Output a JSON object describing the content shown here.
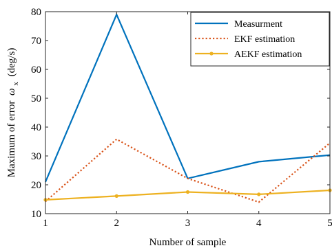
{
  "chart_data": {
    "type": "line",
    "title": "",
    "xlabel": "Number of sample",
    "ylabel": "Maximum of error",
    "ylabel_symbol": "ω",
    "ylabel_subscript": "x",
    "ylabel_unit": "(deg/s)",
    "x": [
      1,
      2,
      3,
      4,
      5
    ],
    "xlim": [
      1,
      5
    ],
    "ylim": [
      10,
      80
    ],
    "xticks": [
      "1",
      "2",
      "3",
      "4",
      "5"
    ],
    "yticks": [
      "10",
      "20",
      "30",
      "40",
      "50",
      "60",
      "70",
      "80"
    ],
    "grid": false,
    "legend_position": "top-right",
    "series": [
      {
        "name": "Measurment",
        "values": [
          21,
          79,
          22.2,
          28,
          30.3
        ],
        "color": "#0072BD",
        "style": "solid",
        "marker": "none"
      },
      {
        "name": "EKF estimation",
        "values": [
          14.2,
          35.8,
          22.2,
          14,
          34.5
        ],
        "color": "#D95319",
        "style": "dotted",
        "marker": "none"
      },
      {
        "name": "AEKF estimation",
        "values": [
          14.8,
          16.1,
          17.5,
          16.7,
          18.1
        ],
        "color": "#EDB120",
        "style": "solid",
        "marker": "dot"
      }
    ]
  }
}
